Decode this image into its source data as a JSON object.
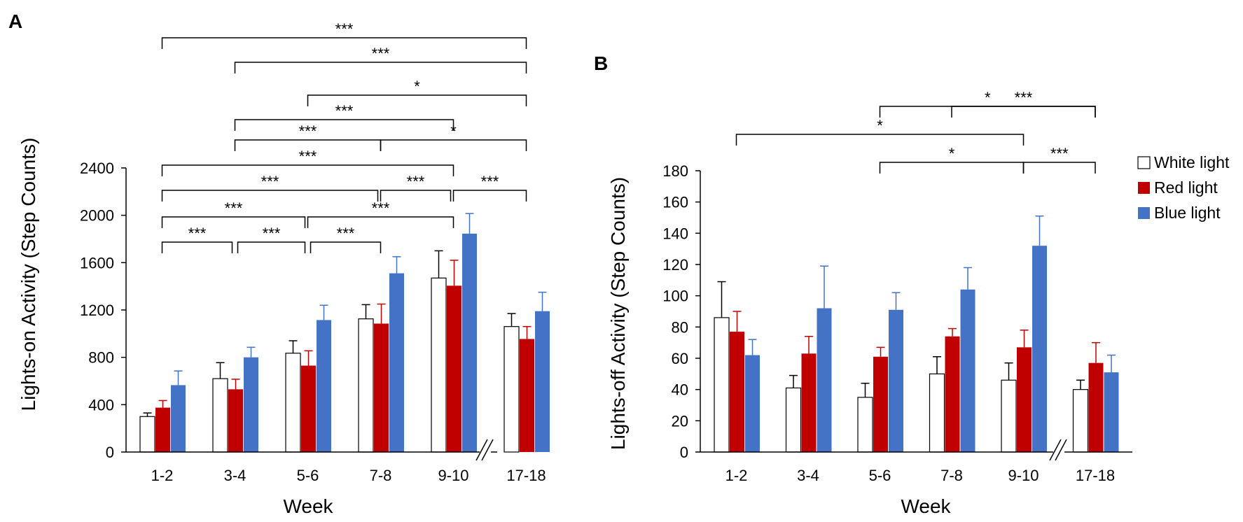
{
  "colors": {
    "white": "#ffffff",
    "red": "#c00000",
    "blue": "#4472c4",
    "axis": "#000000"
  },
  "legend": [
    {
      "name": "White light",
      "color": "#ffffff"
    },
    {
      "name": "Red light",
      "color": "#c00000"
    },
    {
      "name": "Blue light",
      "color": "#4472c4"
    }
  ],
  "chart_data": [
    {
      "panel": "A",
      "type": "bar",
      "xlabel": "Week",
      "ylabel": "Lights-on Activity (Step Counts)",
      "ylim": [
        0,
        2400
      ],
      "yticks": [
        0,
        400,
        800,
        1200,
        1600,
        2000,
        2400
      ],
      "categories": [
        "1-2",
        "3-4",
        "5-6",
        "7-8",
        "9-10",
        "17-18"
      ],
      "axis_break_after": "9-10",
      "series": [
        {
          "name": "White light",
          "values": [
            300,
            620,
            835,
            1125,
            1470,
            1060
          ],
          "errors": [
            30,
            135,
            105,
            120,
            230,
            110
          ]
        },
        {
          "name": "Red light",
          "values": [
            375,
            530,
            730,
            1085,
            1405,
            955
          ],
          "errors": [
            60,
            85,
            125,
            165,
            215,
            105
          ]
        },
        {
          "name": "Blue light",
          "values": [
            565,
            800,
            1115,
            1510,
            1845,
            1190
          ],
          "errors": [
            120,
            85,
            125,
            140,
            170,
            160
          ]
        }
      ],
      "significance": [
        {
          "from": "1-2",
          "to": "3-4",
          "label": "***"
        },
        {
          "from": "3-4",
          "to": "5-6",
          "label": "***"
        },
        {
          "from": "5-6",
          "to": "7-8",
          "label": "***"
        },
        {
          "from": "1-2",
          "to": "5-6",
          "label": "***"
        },
        {
          "from": "5-6",
          "to": "9-10",
          "label": "***"
        },
        {
          "from": "1-2",
          "to": "7-8",
          "label": "***"
        },
        {
          "from": "7-8",
          "to": "9-10",
          "label": "***"
        },
        {
          "from": "9-10",
          "to": "17-18",
          "label": "***"
        },
        {
          "from": "1-2",
          "to": "9-10",
          "label": "***"
        },
        {
          "from": "3-4",
          "to": "7-8",
          "label": "***"
        },
        {
          "from": "7-8",
          "to": "17-18",
          "label": "*"
        },
        {
          "from": "3-4",
          "to": "9-10",
          "label": "***"
        },
        {
          "from": "5-6",
          "to": "17-18",
          "label": "*"
        },
        {
          "from": "3-4",
          "to": "17-18",
          "label": "***"
        },
        {
          "from": "1-2",
          "to": "17-18",
          "label": "***"
        }
      ]
    },
    {
      "panel": "B",
      "type": "bar",
      "xlabel": "Week",
      "ylabel": "Lights-off Activity (Step Counts)",
      "ylim": [
        0,
        180
      ],
      "yticks": [
        0,
        20,
        40,
        60,
        80,
        100,
        120,
        140,
        160,
        180
      ],
      "categories": [
        "1-2",
        "3-4",
        "5-6",
        "7-8",
        "9-10",
        "17-18"
      ],
      "axis_break_after": "9-10",
      "series": [
        {
          "name": "White light",
          "values": [
            86,
            41,
            35,
            50,
            46,
            40
          ],
          "errors": [
            23,
            8,
            9,
            11,
            11,
            6
          ]
        },
        {
          "name": "Red light",
          "values": [
            77,
            63,
            61,
            74,
            67,
            57
          ],
          "errors": [
            13,
            11,
            6,
            5,
            11,
            13
          ]
        },
        {
          "name": "Blue light",
          "values": [
            62,
            92,
            91,
            104,
            132,
            51
          ],
          "errors": [
            10,
            27,
            11,
            14,
            19,
            11
          ]
        }
      ],
      "significance": [
        {
          "from": "5-6",
          "to": "9-10",
          "label": "*"
        },
        {
          "from": "9-10",
          "to": "17-18",
          "label": "***"
        },
        {
          "from": "1-2",
          "to": "9-10",
          "label": "*"
        },
        {
          "from": "7-8",
          "to": "17-18",
          "label": "***"
        },
        {
          "from": "5-6",
          "to": "17-18",
          "label": "*"
        }
      ]
    }
  ]
}
